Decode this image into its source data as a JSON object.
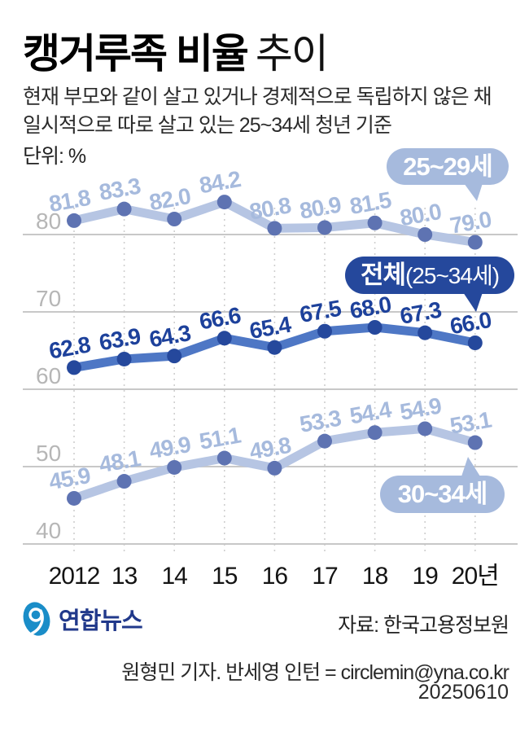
{
  "header": {
    "title_strong": "캥거루족 비율",
    "title_light": "추이",
    "subtitle_line1": "현재 부모와 같이 살고 있거나 경제적으로 독립하지 않은 채",
    "subtitle_line2": "일시적으로 따로 살고 있는 25~34세 청년 기준",
    "unit": "단위: %"
  },
  "chart_data": {
    "type": "line",
    "categories": [
      "2012",
      "13",
      "14",
      "15",
      "16",
      "17",
      "18",
      "19",
      "20년"
    ],
    "y_ticks": [
      80,
      70,
      60,
      50,
      40
    ],
    "ylim": [
      37,
      87
    ],
    "grid": true,
    "legend_position": "inline-badges",
    "series": [
      {
        "name": "25~29세",
        "values": [
          81.8,
          83.3,
          82.0,
          84.2,
          80.8,
          80.9,
          81.5,
          80.0,
          79.0
        ],
        "line_color": "#b6c5e3",
        "dot_color": "#5e73b2",
        "label_color": "#a6badd"
      },
      {
        "name": "전체(25~34세)",
        "values": [
          62.8,
          63.9,
          64.3,
          66.6,
          65.4,
          67.5,
          68.0,
          67.3,
          66.0
        ],
        "line_color": "#4e77c5",
        "dot_color": "#25489c",
        "label_color": "#1d419b"
      },
      {
        "name": "30~34세",
        "values": [
          45.9,
          48.1,
          49.9,
          51.1,
          49.8,
          53.3,
          54.4,
          54.9,
          53.1
        ],
        "line_color": "#b6c5e3",
        "dot_color": "#5e73b2",
        "label_color": "#a6badd"
      }
    ]
  },
  "badges": {
    "age_25_29": "25~29세",
    "total_strong": "전체",
    "total_paren": "(25~34세)",
    "age_30_34": "30~34세"
  },
  "footer": {
    "logo_text": "연합뉴스",
    "source": "자료: 한국고용정보원",
    "credit": "원형민 기자. 반세영 인턴 = circlemin@yna.co.kr",
    "date": "20250610"
  },
  "colors": {
    "grid_line": "#c8c8c8",
    "grid_dotted": "#cfcfcf",
    "y_tick_label": "#b6b6b6",
    "x_tick_label": "#141414",
    "badge_light_bg": "#a6badd",
    "badge_dark_bg": "#25489c",
    "logo_blue": "#1a8dc8",
    "logo_navy": "#21398b"
  }
}
